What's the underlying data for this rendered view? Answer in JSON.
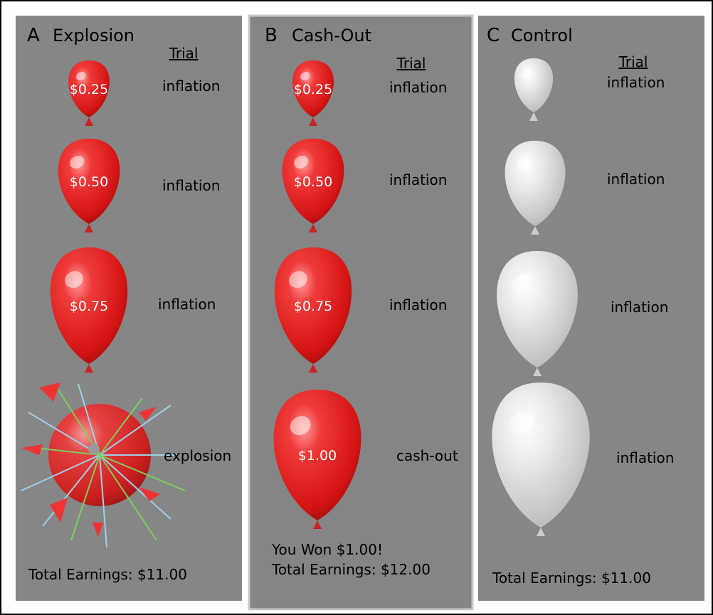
{
  "panels": [
    {
      "letter": "A",
      "title": "Explosion",
      "trial_heading": "Trial",
      "balloons": [
        {
          "amount": "$0.25",
          "action": "inflation"
        },
        {
          "amount": "$0.50",
          "action": "inflation"
        },
        {
          "amount": "$0.75",
          "action": "inflation"
        },
        {
          "action": "explosion"
        }
      ],
      "footer": [
        "Total Earnings: $11.00"
      ]
    },
    {
      "letter": "B",
      "title": "Cash-Out",
      "trial_heading": "Trial",
      "balloons": [
        {
          "amount": "$0.25",
          "action": "inflation"
        },
        {
          "amount": "$0.50",
          "action": "inflation"
        },
        {
          "amount": "$0.75",
          "action": "inflation"
        },
        {
          "amount": "$1.00",
          "action": "cash-out"
        }
      ],
      "footer": [
        "You Won $1.00!",
        "Total Earnings: $12.00"
      ]
    },
    {
      "letter": "C",
      "title": "Control",
      "trial_heading": "Trial",
      "balloons": [
        {
          "action": "inflation"
        },
        {
          "action": "inflation"
        },
        {
          "action": "inflation"
        },
        {
          "action": "inflation"
        }
      ],
      "footer": [
        "Total Earnings: $11.00"
      ]
    }
  ]
}
